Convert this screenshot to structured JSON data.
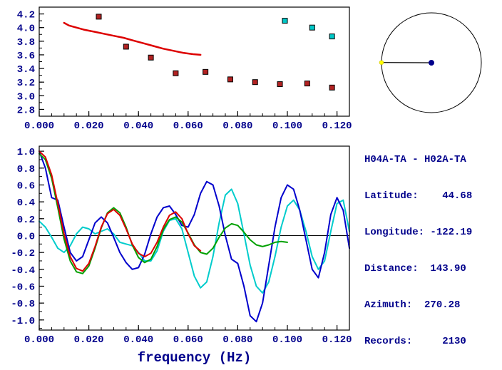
{
  "colors": {
    "text": "#00008B",
    "axis": "#000000"
  },
  "station_info": {
    "title": "H04A-TA - H02A-TA",
    "rows": [
      "Latitude:    44.68",
      "Longitude: -122.19",
      "Distance:  143.90",
      "Azimuth:  270.28",
      "Records:     2130"
    ]
  },
  "azimuth_diagram": {
    "azimuth_deg": 270.28,
    "circle_color": "#000000",
    "line_color": "#000000",
    "endpoint_color": "#ffff00",
    "center_color": "#00008B"
  },
  "chart_data": [
    {
      "id": "dispersion",
      "type": "scatter",
      "title": "",
      "xlabel": "",
      "ylabel": "",
      "xlim": [
        0,
        0.125
      ],
      "ylim": [
        2.7,
        4.3
      ],
      "grid": false,
      "xminor": 0.005,
      "yminor": 0.1,
      "xticks": {
        "values": [
          0,
          0.02,
          0.04,
          0.06,
          0.08,
          0.1,
          0.12
        ],
        "labels": [
          "0.000",
          "0.020",
          "0.040",
          "0.060",
          "0.080",
          "0.100",
          "0.120"
        ]
      },
      "yticks": {
        "values": [
          2.8,
          3.0,
          3.2,
          3.4,
          3.6,
          3.8,
          4.0,
          4.2
        ],
        "labels": [
          "2.8",
          "3.0",
          "3.2",
          "3.4",
          "3.6",
          "3.8",
          "4.0",
          "4.2"
        ]
      },
      "series": [
        {
          "name": "red-dispersion-curve",
          "kind": "line",
          "color": "#dd0000",
          "width": 2.5,
          "points": [
            [
              0.01,
              4.07
            ],
            [
              0.012,
              4.03
            ],
            [
              0.015,
              4.0
            ],
            [
              0.018,
              3.97
            ],
            [
              0.022,
              3.94
            ],
            [
              0.026,
              3.91
            ],
            [
              0.03,
              3.88
            ],
            [
              0.034,
              3.85
            ],
            [
              0.038,
              3.81
            ],
            [
              0.042,
              3.77
            ],
            [
              0.046,
              3.73
            ],
            [
              0.05,
              3.69
            ],
            [
              0.054,
              3.66
            ],
            [
              0.058,
              3.63
            ],
            [
              0.062,
              3.61
            ],
            [
              0.065,
              3.6
            ]
          ]
        },
        {
          "name": "red-square-picks",
          "kind": "points",
          "marker": "square",
          "color": "#b22222",
          "points": [
            [
              0.024,
              4.16
            ],
            [
              0.035,
              3.72
            ],
            [
              0.045,
              3.56
            ],
            [
              0.055,
              3.33
            ],
            [
              0.067,
              3.35
            ],
            [
              0.077,
              3.24
            ],
            [
              0.087,
              3.2
            ],
            [
              0.097,
              3.17
            ],
            [
              0.108,
              3.18
            ],
            [
              0.118,
              3.12
            ]
          ]
        },
        {
          "name": "cyan-square-picks",
          "kind": "points",
          "marker": "square",
          "color": "#00c8c8",
          "points": [
            [
              0.099,
              4.1
            ],
            [
              0.11,
              4.0
            ],
            [
              0.118,
              3.87
            ]
          ]
        }
      ]
    },
    {
      "id": "cross-spectrum",
      "type": "line",
      "title": "",
      "xlabel": "frequency (Hz)",
      "ylabel": "",
      "xlim": [
        0,
        0.125
      ],
      "ylim": [
        -1.12,
        1.06
      ],
      "grid": false,
      "zero_line": true,
      "xminor": 0.005,
      "yminor": 0.1,
      "xticks": {
        "values": [
          0,
          0.02,
          0.04,
          0.06,
          0.08,
          0.1,
          0.12
        ],
        "labels": [
          "0.000",
          "0.020",
          "0.040",
          "0.060",
          "0.080",
          "0.100",
          "0.120"
        ]
      },
      "yticks": {
        "values": [
          1.0,
          0.8,
          0.6,
          0.4,
          0.2,
          0.0,
          -0.2,
          -0.4,
          -0.6,
          -0.8,
          -1.0
        ],
        "labels": [
          "1.0",
          "0.8",
          "0.6",
          "0.4",
          "0.2",
          "0.0",
          "-0.2",
          "-0.4",
          "-0.6",
          "-0.8",
          "-1.0"
        ]
      },
      "series": [
        {
          "name": "cyan-spectrum-curve",
          "kind": "line",
          "color": "#00cccc",
          "width": 2,
          "x_start": 0,
          "x_step": 0.0025,
          "values": [
            0.17,
            0.1,
            -0.02,
            -0.15,
            -0.2,
            -0.12,
            0.02,
            0.1,
            0.08,
            0.02,
            0.05,
            0.08,
            0.02,
            -0.08,
            -0.1,
            -0.12,
            -0.2,
            -0.3,
            -0.3,
            -0.18,
            0.05,
            0.18,
            0.2,
            0.08,
            -0.2,
            -0.48,
            -0.62,
            -0.55,
            -0.25,
            0.15,
            0.48,
            0.55,
            0.38,
            0.02,
            -0.35,
            -0.6,
            -0.68,
            -0.55,
            -0.25,
            0.1,
            0.35,
            0.42,
            0.3,
            0.05,
            -0.25,
            -0.4,
            -0.3,
            0.05,
            0.38,
            0.42,
            0.05
          ]
        },
        {
          "name": "blue-spectrum-curve",
          "kind": "line",
          "color": "#0000cc",
          "width": 2,
          "x_start": 0,
          "x_step": 0.0025,
          "values": [
            1.0,
            0.8,
            0.45,
            0.42,
            0.1,
            -0.2,
            -0.3,
            -0.25,
            -0.05,
            0.15,
            0.22,
            0.15,
            -0.02,
            -0.2,
            -0.32,
            -0.4,
            -0.38,
            -0.22,
            0.02,
            0.22,
            0.33,
            0.35,
            0.25,
            0.12,
            0.1,
            0.25,
            0.5,
            0.64,
            0.6,
            0.35,
            0.0,
            -0.28,
            -0.33,
            -0.6,
            -0.95,
            -1.02,
            -0.8,
            -0.35,
            0.1,
            0.45,
            0.6,
            0.55,
            0.3,
            -0.05,
            -0.4,
            -0.5,
            -0.2,
            0.25,
            0.45,
            0.3,
            -0.15
          ]
        },
        {
          "name": "green-spectrum-curve",
          "kind": "line",
          "color": "#00a000",
          "width": 2,
          "x_start": 0,
          "x_step": 0.0025,
          "values": [
            0.97,
            0.9,
            0.68,
            0.33,
            -0.04,
            -0.3,
            -0.43,
            -0.45,
            -0.36,
            -0.15,
            0.09,
            0.27,
            0.33,
            0.27,
            0.1,
            -0.11,
            -0.26,
            -0.32,
            -0.28,
            -0.13,
            0.07,
            0.19,
            0.22,
            0.16,
            0.03,
            -0.11,
            -0.2,
            -0.22,
            -0.15,
            -0.02,
            0.09,
            0.14,
            0.12,
            0.04,
            -0.05,
            -0.11,
            -0.13,
            -0.11,
            -0.08,
            -0.07,
            -0.08
          ]
        },
        {
          "name": "red-fit-curve",
          "kind": "line",
          "color": "#dd0000",
          "width": 2,
          "x_start": 0,
          "x_step": 0.0025,
          "values": [
            1.0,
            0.93,
            0.72,
            0.38,
            0.02,
            -0.25,
            -0.39,
            -0.42,
            -0.33,
            -0.13,
            0.1,
            0.26,
            0.31,
            0.24,
            0.08,
            -0.1,
            -0.21,
            -0.25,
            -0.21,
            -0.08,
            0.1,
            0.24,
            0.28,
            0.2,
            0.02,
            -0.12,
            -0.18
          ]
        }
      ]
    }
  ]
}
